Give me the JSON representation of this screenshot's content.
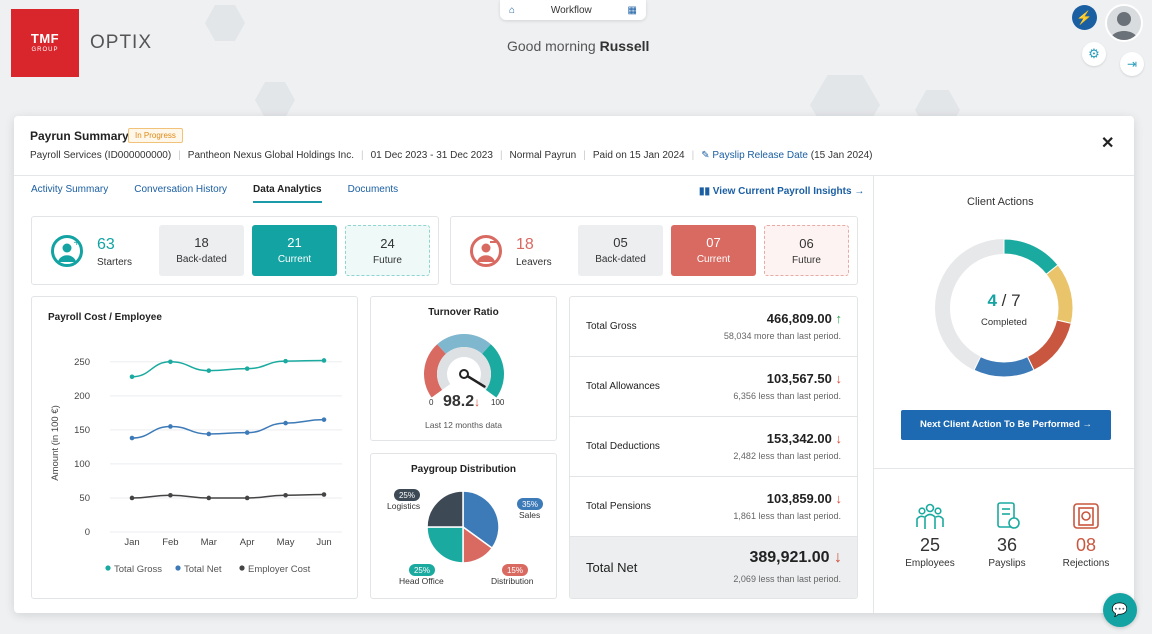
{
  "header": {
    "logo_line1": "TMF",
    "logo_line2": "GROUP",
    "app_name": "OPTIX",
    "workflow_label": "Workflow",
    "greeting_prefix": "Good morning",
    "greeting_name": "Russell"
  },
  "payrun": {
    "title": "Payrun Summary",
    "status": "In Progress",
    "service": "Payroll Services (ID000000000)",
    "client": "Pantheon Nexus Global Holdings Inc.",
    "period": "01 Dec 2023 - 31 Dec 2023",
    "type": "Normal Payrun",
    "paid_on": "Paid on 15 Jan 2024",
    "payslip_link": "Payslip Release Date",
    "payslip_date": "(15 Jan 2024)",
    "close": "✕"
  },
  "tabs": [
    {
      "label": "Activity Summary"
    },
    {
      "label": "Conversation History"
    },
    {
      "label": "Data Analytics"
    },
    {
      "label": "Documents"
    }
  ],
  "insights_link": "View Current Payroll Insights →",
  "starters": {
    "count": "63",
    "label": "Starters",
    "backdated_value": "18",
    "backdated_label": "Back-dated",
    "current_value": "21",
    "current_label": "Current",
    "future_value": "24",
    "future_label": "Future",
    "color": "#14a3a3"
  },
  "leavers": {
    "count": "18",
    "label": "Leavers",
    "backdated_value": "05",
    "backdated_label": "Back-dated",
    "current_value": "07",
    "current_label": "Current",
    "future_value": "06",
    "future_label": "Future",
    "color": "#d96a62"
  },
  "payroll_cost": {
    "title": "Payroll Cost / Employee",
    "ylabel": "Amount (in 100 €)"
  },
  "chart_data": {
    "type": "line",
    "title": "Payroll Cost / Employee",
    "xlabel": "",
    "ylabel": "Amount (in 100 €)",
    "categories": [
      "Jan",
      "Feb",
      "Mar",
      "Apr",
      "May",
      "Jun"
    ],
    "yticks": [
      0,
      50,
      100,
      150,
      200,
      250
    ],
    "ylim": [
      0,
      260
    ],
    "series": [
      {
        "name": "Total Gross",
        "color": "#1baaa0",
        "values": [
          228,
          250,
          237,
          240,
          251,
          252
        ]
      },
      {
        "name": "Total Net",
        "color": "#3d7ab8",
        "values": [
          138,
          155,
          144,
          146,
          160,
          165
        ]
      },
      {
        "name": "Employer Cost",
        "color": "#444444",
        "values": [
          50,
          54,
          50,
          50,
          54,
          55
        ]
      }
    ],
    "legend": "bottom"
  },
  "turnover": {
    "title": "Turnover Ratio",
    "value": "98.2",
    "min": "0",
    "max": "100",
    "caption": "Last 12 months data"
  },
  "paygroup": {
    "title": "Paygroup Distribution",
    "slices": [
      {
        "label": "Sales",
        "pct": "35%",
        "value": 35,
        "color": "#3d7ab8"
      },
      {
        "label": "Distribution",
        "pct": "15%",
        "value": 15,
        "color": "#d96a62"
      },
      {
        "label": "Head Office",
        "pct": "25%",
        "value": 25,
        "color": "#1baaa0"
      },
      {
        "label": "Logistics",
        "pct": "25%",
        "value": 25,
        "color": "#3d4a56"
      }
    ]
  },
  "totals": [
    {
      "label": "Total Gross",
      "amount": "466,809.00",
      "arrow": "↑",
      "dir": "up",
      "compare": "58,034 more than last period."
    },
    {
      "label": "Total Allowances",
      "amount": "103,567.50",
      "arrow": "↓",
      "dir": "down",
      "compare": "6,356 less than last period."
    },
    {
      "label": "Total Deductions",
      "amount": "153,342.00",
      "arrow": "↓",
      "dir": "down",
      "compare": "2,482 less than last period."
    },
    {
      "label": "Total Pensions",
      "amount": "103,859.00",
      "arrow": "↓",
      "dir": "down",
      "compare": "1,861 less than last period."
    },
    {
      "label": "Total Net",
      "amount": "389,921.00",
      "arrow": "↓",
      "dir": "down",
      "compare": "2,069 less than last period."
    }
  ],
  "client_actions": {
    "title": "Client Actions",
    "done": "4",
    "total": "7",
    "completed_label": "Completed",
    "button": "Next Client Action To Be Performed  →",
    "segments": [
      {
        "color": "#1baaa0"
      },
      {
        "color": "#e9c46a"
      },
      {
        "color": "#c9573f"
      },
      {
        "color": "#3d7ab8"
      }
    ]
  },
  "summary": [
    {
      "value": "25",
      "label": "Employees",
      "color": "#1baaa0"
    },
    {
      "value": "36",
      "label": "Payslips",
      "color": "#1baaa0"
    },
    {
      "value": "08",
      "label": "Rejections",
      "color": "#c9573f"
    }
  ]
}
